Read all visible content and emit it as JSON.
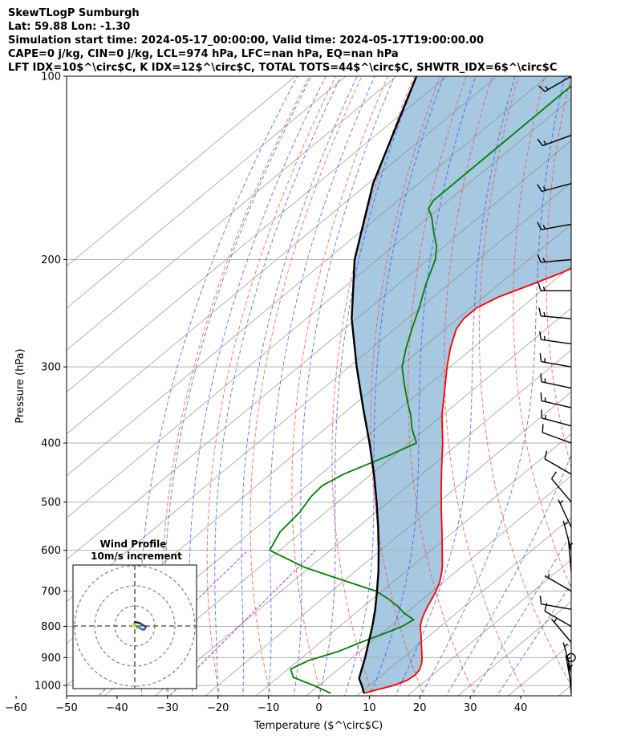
{
  "title_lines": [
    "SkewTLogP Sumburgh",
    "Lat: 59.88   Lon: -1.30",
    "Simulation start time: 2024-05-17_00:00:00, Valid time: 2024-05-17T19:00:00.00",
    "CAPE=0 j/kg, CIN=0 j/kg, LCL=974 hPa, LFC=nan hPa, EQ=nan hPa",
    "LFT IDX=10$^\\circ$C, K IDX=12$^\\circ$C, TOTAL TOTS=44$^\\circ$C, SHWTR_IDX=6$^\\circ$C"
  ],
  "chart_data": {
    "type": "skewt",
    "xlabel": "Temperature ($^\\circ$C)",
    "ylabel": "Pressure (hPa)",
    "xlim": [
      -60,
      40
    ],
    "ylim": [
      1040,
      100
    ],
    "y_scale": "log",
    "grid": true,
    "x_ticks": [
      -60,
      -50,
      -40,
      -30,
      -20,
      -10,
      0,
      10,
      20,
      30,
      40
    ],
    "y_ticks": [
      100,
      200,
      300,
      400,
      500,
      600,
      700,
      800,
      900,
      1000
    ],
    "temperature": {
      "color": "#ff0000",
      "p": [
        1030,
        1015,
        1000,
        980,
        960,
        940,
        920,
        900,
        860,
        820,
        800,
        780,
        760,
        740,
        720,
        700,
        680,
        660,
        640,
        600,
        560,
        520,
        480,
        440,
        400,
        360,
        330,
        300,
        280,
        260,
        250,
        240,
        230,
        220,
        210,
        200,
        190,
        180,
        170,
        160,
        150,
        140,
        130,
        120,
        110,
        100
      ],
      "t": [
        10.8,
        12.7,
        14.8,
        16.3,
        16.6,
        16.1,
        15.1,
        13.8,
        10.8,
        7.7,
        6.0,
        4.7,
        3.6,
        2.6,
        1.7,
        0.7,
        -0.5,
        -2.0,
        -3.7,
        -7.8,
        -12.2,
        -17.0,
        -22.1,
        -27.5,
        -33.3,
        -40.1,
        -45.1,
        -50.6,
        -54.3,
        -57.8,
        -58.8,
        -58.8,
        -57.0,
        -53.6,
        -50.3,
        -47.7,
        -45.6,
        -43.3,
        -41.6,
        -40.5,
        -39.8,
        -39.6,
        -39.8,
        -40.0,
        -40.4,
        -40.9
      ]
    },
    "dewpoint": {
      "color": "#008000",
      "p": [
        1030,
        1000,
        970,
        940,
        910,
        880,
        850,
        820,
        800,
        780,
        760,
        740,
        720,
        700,
        670,
        640,
        600,
        560,
        520,
        490,
        470,
        450,
        420,
        400,
        380,
        360,
        340,
        320,
        300,
        280,
        260,
        240,
        220,
        200,
        190,
        180,
        170,
        165,
        160,
        150,
        140,
        130,
        120,
        110,
        100
      ],
      "t": [
        4.2,
        -1.0,
        -7.0,
        -9.5,
        -8.0,
        -4.3,
        -2.0,
        0.7,
        2.4,
        3.1,
        -0.5,
        -3.5,
        -7.1,
        -11.2,
        -21.0,
        -31.0,
        -42.0,
        -44.3,
        -45.1,
        -46.6,
        -47.0,
        -45.5,
        -41.1,
        -38.5,
        -42.6,
        -46.3,
        -50.6,
        -55.0,
        -59.5,
        -63.1,
        -66.6,
        -70.2,
        -74.4,
        -78.5,
        -81.5,
        -85.5,
        -89.5,
        -92.0,
        -93.0,
        -93.0,
        -93.0,
        -93.0,
        -93.0,
        -93.0,
        -93.0
      ]
    },
    "parcel": {
      "color": "#000000",
      "p": [
        1030,
        1000,
        974,
        950,
        900,
        850,
        800,
        750,
        700,
        650,
        600,
        550,
        500,
        450,
        400,
        350,
        300,
        250,
        200,
        150,
        100
      ],
      "t": [
        10.8,
        8.5,
        6.3,
        5.1,
        2.5,
        -0.4,
        -3.5,
        -7.0,
        -11.0,
        -15.4,
        -20.4,
        -26.0,
        -32.3,
        -39.5,
        -47.8,
        -57.5,
        -68.5,
        -81.0,
        -94.5,
        -109.0,
        -126.0
      ]
    },
    "shaded_area_color": "#a6c8e0",
    "dry_adiabat_color": "#ff4444",
    "moist_adiabat_color": "#3344ff",
    "mixing_ratio_color": "#9933cc",
    "isotherm_color": "#888888",
    "barb_pressures": [
      100,
      125,
      150,
      175,
      200,
      225,
      250,
      275,
      300,
      325,
      350,
      375,
      400,
      450,
      500,
      550,
      600,
      650,
      700,
      750,
      800,
      850,
      900,
      950,
      1000,
      1030
    ],
    "barb_dirs": [
      240,
      250,
      255,
      260,
      265,
      270,
      275,
      278,
      280,
      282,
      283,
      285,
      290,
      300,
      320,
      335,
      345,
      355,
      300,
      280,
      300,
      320,
      340,
      345,
      350,
      355
    ],
    "barb_speeds": [
      15,
      15,
      15,
      15,
      15,
      15,
      15,
      15,
      15,
      15,
      15,
      15,
      12,
      10,
      10,
      8,
      6,
      5,
      8,
      10,
      12,
      5,
      0,
      4,
      6,
      7
    ],
    "inset": {
      "title": "Wind Profile",
      "subtitle": "10m/s increment",
      "rings": [
        10,
        20,
        30
      ],
      "hodograph_u": [
        0,
        1.5,
        3.0,
        4.3,
        5.6,
        5.3,
        4.7,
        3.3,
        2.4,
        1.2,
        0.5,
        -0.5,
        -0.4,
        0.3,
        -0.3,
        -0.8,
        -1.0
      ],
      "hodograph_v": [
        2.0,
        1.7,
        1.2,
        0.2,
        -0.3,
        -1.0,
        -1.8,
        -1.6,
        -0.9,
        -0.6,
        0.3,
        0.5,
        1.1,
        0.7,
        -0.2,
        -0.6,
        0.4
      ]
    }
  }
}
